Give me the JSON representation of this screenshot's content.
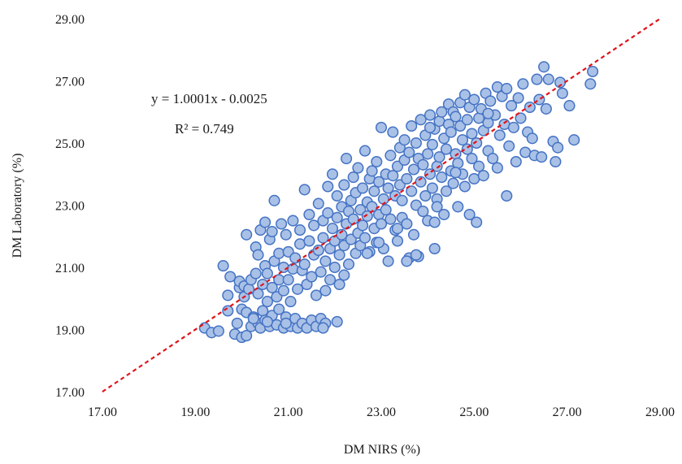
{
  "chart_data": {
    "type": "scatter",
    "xlabel": "DM NIRS  (%)",
    "ylabel": "DM Laboratory  (%)",
    "xlim": [
      17,
      29
    ],
    "ylim": [
      17,
      29
    ],
    "x_ticks": [
      "17.00",
      "19.00",
      "21.00",
      "23.00",
      "25.00",
      "27.00",
      "29.00"
    ],
    "y_ticks": [
      "17.00",
      "19.00",
      "21.00",
      "23.00",
      "25.00",
      "27.00",
      "29.00"
    ],
    "grid": false,
    "annotations": {
      "equation": "y = 1.0001x - 0.0025",
      "r_squared": "R² = 0.749"
    },
    "trendline": {
      "slope": 1.0001,
      "intercept": -0.0025,
      "color": "#e0141b",
      "style": "dashed"
    },
    "marker": {
      "fill": "#a9c1e6",
      "stroke": "#4472c4"
    },
    "points": [
      [
        19.2,
        19.05
      ],
      [
        19.35,
        18.9
      ],
      [
        19.5,
        18.95
      ],
      [
        19.6,
        21.05
      ],
      [
        19.7,
        19.6
      ],
      [
        19.7,
        20.1
      ],
      [
        19.75,
        20.7
      ],
      [
        19.85,
        18.85
      ],
      [
        19.9,
        19.2
      ],
      [
        19.95,
        20.35
      ],
      [
        19.95,
        20.55
      ],
      [
        20.0,
        18.75
      ],
      [
        20.0,
        19.65
      ],
      [
        20.05,
        20.05
      ],
      [
        20.05,
        20.4
      ],
      [
        20.1,
        18.8
      ],
      [
        20.1,
        19.55
      ],
      [
        20.1,
        22.05
      ],
      [
        20.15,
        20.3
      ],
      [
        20.2,
        19.1
      ],
      [
        20.2,
        20.6
      ],
      [
        20.25,
        19.4
      ],
      [
        20.3,
        20.8
      ],
      [
        20.3,
        21.65
      ],
      [
        20.35,
        19.2
      ],
      [
        20.35,
        20.15
      ],
      [
        20.35,
        21.4
      ],
      [
        20.4,
        19.05
      ],
      [
        20.4,
        22.2
      ],
      [
        20.45,
        19.6
      ],
      [
        20.45,
        20.45
      ],
      [
        20.5,
        19.3
      ],
      [
        20.5,
        21.05
      ],
      [
        20.5,
        22.45
      ],
      [
        20.55,
        19.9
      ],
      [
        20.55,
        20.8
      ],
      [
        20.6,
        19.1
      ],
      [
        20.6,
        21.9
      ],
      [
        20.65,
        19.45
      ],
      [
        20.65,
        20.35
      ],
      [
        20.65,
        22.15
      ],
      [
        20.7,
        23.15
      ],
      [
        20.7,
        21.2
      ],
      [
        20.75,
        19.15
      ],
      [
        20.75,
        20.05
      ],
      [
        20.8,
        19.65
      ],
      [
        20.8,
        20.6
      ],
      [
        20.8,
        21.45
      ],
      [
        20.85,
        22.4
      ],
      [
        20.9,
        19.05
      ],
      [
        20.9,
        20.25
      ],
      [
        20.9,
        21.0
      ],
      [
        20.95,
        19.4
      ],
      [
        20.95,
        22.05
      ],
      [
        21.0,
        20.6
      ],
      [
        21.0,
        21.5
      ],
      [
        21.05,
        19.1
      ],
      [
        21.05,
        19.9
      ],
      [
        21.1,
        22.5
      ],
      [
        21.1,
        20.95
      ],
      [
        21.15,
        19.35
      ],
      [
        21.15,
        21.3
      ],
      [
        21.2,
        19.05
      ],
      [
        21.2,
        20.3
      ],
      [
        21.25,
        21.75
      ],
      [
        21.25,
        22.2
      ],
      [
        21.3,
        19.2
      ],
      [
        21.3,
        20.9
      ],
      [
        21.35,
        21.1
      ],
      [
        21.35,
        23.5
      ],
      [
        21.4,
        19.05
      ],
      [
        21.4,
        20.45
      ],
      [
        21.45,
        21.85
      ],
      [
        21.45,
        22.7
      ],
      [
        21.5,
        19.3
      ],
      [
        21.5,
        20.7
      ],
      [
        21.55,
        21.4
      ],
      [
        21.55,
        22.35
      ],
      [
        21.6,
        19.1
      ],
      [
        21.6,
        20.1
      ],
      [
        21.65,
        21.55
      ],
      [
        21.65,
        23.05
      ],
      [
        21.7,
        19.35
      ],
      [
        21.7,
        20.85
      ],
      [
        21.75,
        21.95
      ],
      [
        21.75,
        22.5
      ],
      [
        21.8,
        19.2
      ],
      [
        21.8,
        21.2
      ],
      [
        21.85,
        22.75
      ],
      [
        21.85,
        23.6
      ],
      [
        21.9,
        20.6
      ],
      [
        21.9,
        21.6
      ],
      [
        21.95,
        22.25
      ],
      [
        21.95,
        24.0
      ],
      [
        22.0,
        21.0
      ],
      [
        22.0,
        21.85
      ],
      [
        22.05,
        22.6
      ],
      [
        22.05,
        23.3
      ],
      [
        22.1,
        20.45
      ],
      [
        22.1,
        21.4
      ],
      [
        22.15,
        22.05
      ],
      [
        22.15,
        22.95
      ],
      [
        22.2,
        21.7
      ],
      [
        22.2,
        23.65
      ],
      [
        22.25,
        22.4
      ],
      [
        22.25,
        24.5
      ],
      [
        22.3,
        21.1
      ],
      [
        22.3,
        22.8
      ],
      [
        22.35,
        23.15
      ],
      [
        22.35,
        21.9
      ],
      [
        22.4,
        22.55
      ],
      [
        22.4,
        23.9
      ],
      [
        22.45,
        21.45
      ],
      [
        22.45,
        23.4
      ],
      [
        22.5,
        22.1
      ],
      [
        22.5,
        24.2
      ],
      [
        22.55,
        22.85
      ],
      [
        22.55,
        21.7
      ],
      [
        22.6,
        23.55
      ],
      [
        22.6,
        22.35
      ],
      [
        22.65,
        24.75
      ],
      [
        22.65,
        21.95
      ],
      [
        22.7,
        23.1
      ],
      [
        22.7,
        22.65
      ],
      [
        22.75,
        23.85
      ],
      [
        22.75,
        21.5
      ],
      [
        22.8,
        22.95
      ],
      [
        22.8,
        24.1
      ],
      [
        22.85,
        22.25
      ],
      [
        22.85,
        23.45
      ],
      [
        22.9,
        21.8
      ],
      [
        22.9,
        24.4
      ],
      [
        22.95,
        22.7
      ],
      [
        22.95,
        23.75
      ],
      [
        23.0,
        22.4
      ],
      [
        23.0,
        25.5
      ],
      [
        23.05,
        23.2
      ],
      [
        23.05,
        21.6
      ],
      [
        23.1,
        24.0
      ],
      [
        23.1,
        22.85
      ],
      [
        23.15,
        23.55
      ],
      [
        23.15,
        21.2
      ],
      [
        23.2,
        24.6
      ],
      [
        23.2,
        22.55
      ],
      [
        23.25,
        23.95
      ],
      [
        23.25,
        25.35
      ],
      [
        23.3,
        22.2
      ],
      [
        23.3,
        23.3
      ],
      [
        23.35,
        24.25
      ],
      [
        23.35,
        21.85
      ],
      [
        23.4,
        23.65
      ],
      [
        23.4,
        24.85
      ],
      [
        23.45,
        22.6
      ],
      [
        23.45,
        23.15
      ],
      [
        23.5,
        24.45
      ],
      [
        23.5,
        25.1
      ],
      [
        23.55,
        22.4
      ],
      [
        23.55,
        23.85
      ],
      [
        23.6,
        24.7
      ],
      [
        23.6,
        21.3
      ],
      [
        23.65,
        23.45
      ],
      [
        23.65,
        25.55
      ],
      [
        23.7,
        22.05
      ],
      [
        23.7,
        24.15
      ],
      [
        23.75,
        23.0
      ],
      [
        23.75,
        25.0
      ],
      [
        23.8,
        24.5
      ],
      [
        23.8,
        21.35
      ],
      [
        23.85,
        23.75
      ],
      [
        23.85,
        25.75
      ],
      [
        23.9,
        22.8
      ],
      [
        23.9,
        24.3
      ],
      [
        23.95,
        23.3
      ],
      [
        23.95,
        25.25
      ],
      [
        24.0,
        24.65
      ],
      [
        24.0,
        22.5
      ],
      [
        24.05,
        24.0
      ],
      [
        24.05,
        25.9
      ],
      [
        24.1,
        23.55
      ],
      [
        24.1,
        24.95
      ],
      [
        24.15,
        22.45
      ],
      [
        24.15,
        25.45
      ],
      [
        24.2,
        24.25
      ],
      [
        24.2,
        23.2
      ],
      [
        24.25,
        25.7
      ],
      [
        24.25,
        24.55
      ],
      [
        24.3,
        23.9
      ],
      [
        24.3,
        26.0
      ],
      [
        24.35,
        25.15
      ],
      [
        24.35,
        22.7
      ],
      [
        24.4,
        24.8
      ],
      [
        24.4,
        23.45
      ],
      [
        24.45,
        25.6
      ],
      [
        24.45,
        26.25
      ],
      [
        24.5,
        24.1
      ],
      [
        24.5,
        25.35
      ],
      [
        24.55,
        23.7
      ],
      [
        24.55,
        26.0
      ],
      [
        24.6,
        24.65
      ],
      [
        24.6,
        25.85
      ],
      [
        24.65,
        22.95
      ],
      [
        24.65,
        24.35
      ],
      [
        24.7,
        25.55
      ],
      [
        24.7,
        26.3
      ],
      [
        24.75,
        24.0
      ],
      [
        24.75,
        25.1
      ],
      [
        24.8,
        26.55
      ],
      [
        24.8,
        23.6
      ],
      [
        24.85,
        24.8
      ],
      [
        24.85,
        25.75
      ],
      [
        24.9,
        22.7
      ],
      [
        24.9,
        26.15
      ],
      [
        24.95,
        24.5
      ],
      [
        24.95,
        25.3
      ],
      [
        25.0,
        23.85
      ],
      [
        25.0,
        26.4
      ],
      [
        25.05,
        25.0
      ],
      [
        25.05,
        22.45
      ],
      [
        25.1,
        25.8
      ],
      [
        25.1,
        24.25
      ],
      [
        25.15,
        26.1
      ],
      [
        25.2,
        25.4
      ],
      [
        25.2,
        23.95
      ],
      [
        25.25,
        26.6
      ],
      [
        25.3,
        24.75
      ],
      [
        25.3,
        25.65
      ],
      [
        25.35,
        26.35
      ],
      [
        25.4,
        24.5
      ],
      [
        25.45,
        25.9
      ],
      [
        25.5,
        26.8
      ],
      [
        25.5,
        24.2
      ],
      [
        25.55,
        25.25
      ],
      [
        25.6,
        26.5
      ],
      [
        25.65,
        25.6
      ],
      [
        25.7,
        23.3
      ],
      [
        25.7,
        26.75
      ],
      [
        25.75,
        24.9
      ],
      [
        25.8,
        26.2
      ],
      [
        25.85,
        25.5
      ],
      [
        25.9,
        24.4
      ],
      [
        25.95,
        26.45
      ],
      [
        26.0,
        25.8
      ],
      [
        26.05,
        26.9
      ],
      [
        26.1,
        24.7
      ],
      [
        26.15,
        25.35
      ],
      [
        26.2,
        26.15
      ],
      [
        26.25,
        25.15
      ],
      [
        26.3,
        24.6
      ],
      [
        26.35,
        27.05
      ],
      [
        26.4,
        26.4
      ],
      [
        26.45,
        24.55
      ],
      [
        26.5,
        27.45
      ],
      [
        26.55,
        26.1
      ],
      [
        26.6,
        27.05
      ],
      [
        26.7,
        25.05
      ],
      [
        26.75,
        24.4
      ],
      [
        26.8,
        24.85
      ],
      [
        26.85,
        26.95
      ],
      [
        26.9,
        26.6
      ],
      [
        27.05,
        26.2
      ],
      [
        27.15,
        25.1
      ],
      [
        27.5,
        26.9
      ],
      [
        27.55,
        27.3
      ],
      [
        22.05,
        19.25
      ],
      [
        21.75,
        19.05
      ],
      [
        20.95,
        19.2
      ],
      [
        20.55,
        19.25
      ],
      [
        20.25,
        19.35
      ],
      [
        23.75,
        21.4
      ],
      [
        24.15,
        21.6
      ],
      [
        23.55,
        21.2
      ],
      [
        22.7,
        21.45
      ],
      [
        22.2,
        20.75
      ],
      [
        21.8,
        20.25
      ],
      [
        22.95,
        21.8
      ],
      [
        23.35,
        22.25
      ],
      [
        24.6,
        24.05
      ],
      [
        24.2,
        22.95
      ],
      [
        25.3,
        25.95
      ],
      [
        24.05,
        25.5
      ]
    ]
  }
}
